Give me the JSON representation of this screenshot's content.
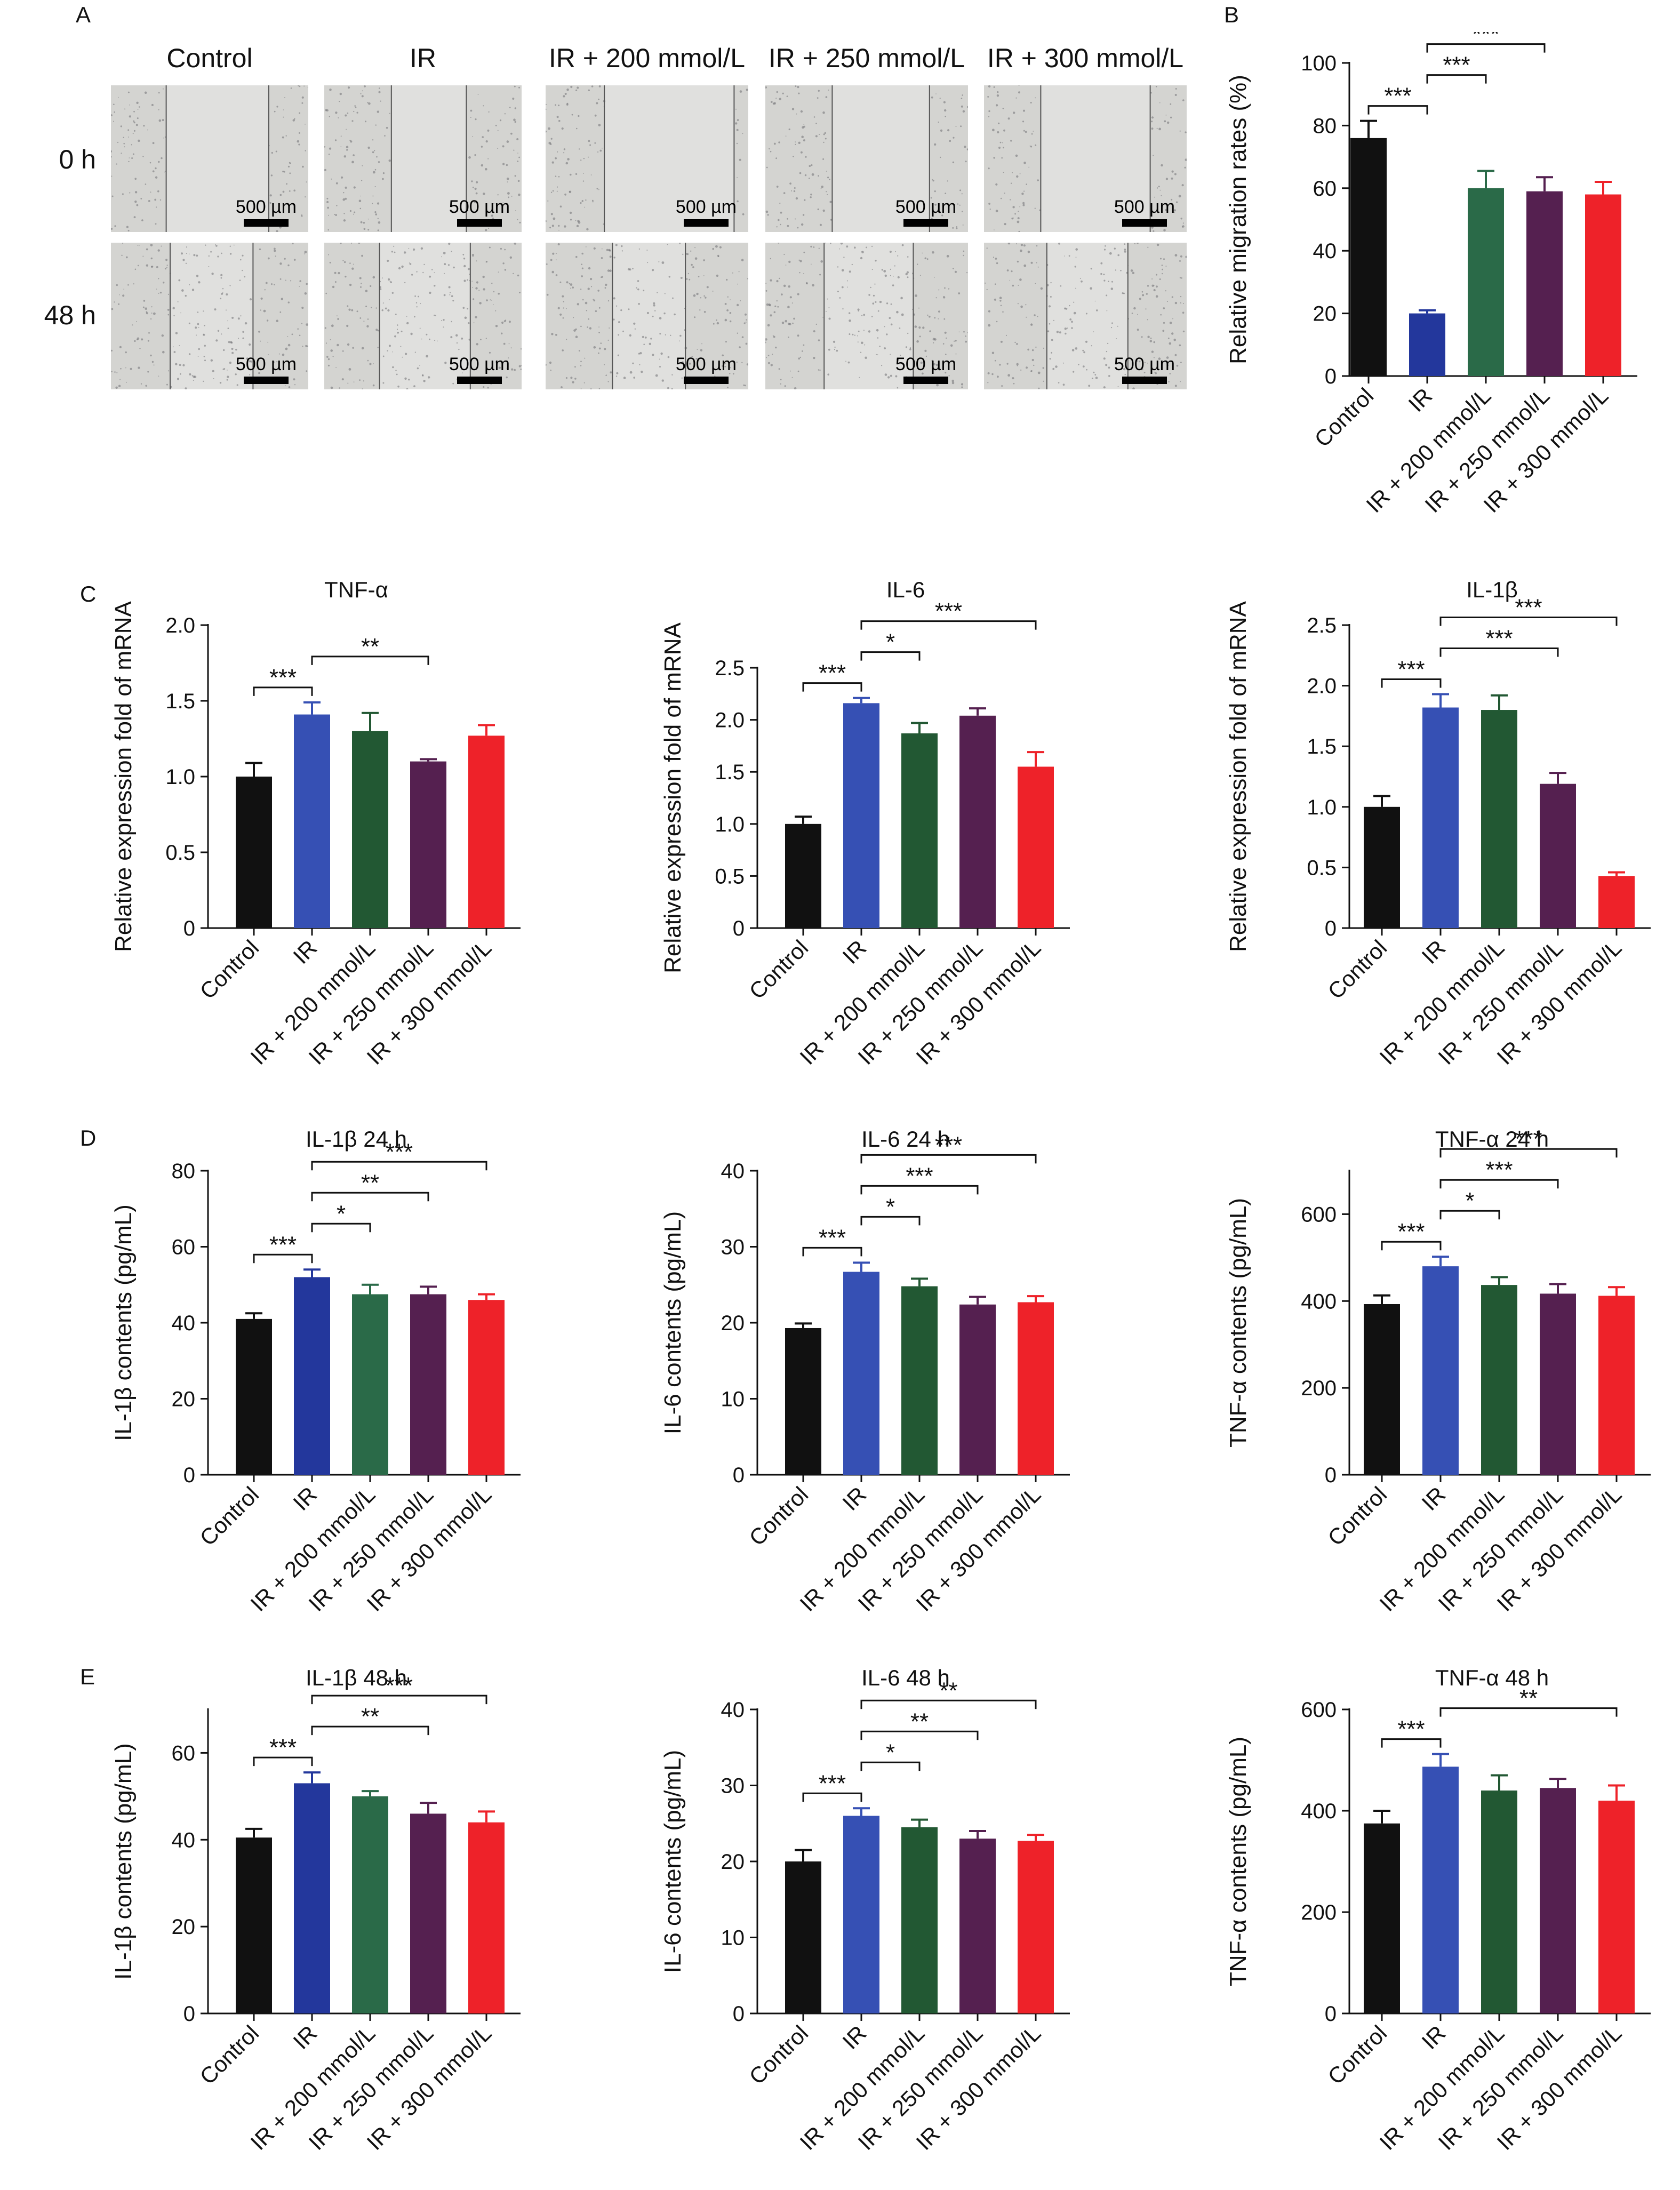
{
  "panel_letters": {
    "a": "A",
    "b": "B",
    "c": "C",
    "d": "D",
    "e": "E"
  },
  "panel_a": {
    "columns": [
      "Control",
      "IR",
      "IR + 200 mmol/L",
      "IR + 250 mmol/L",
      "IR + 300 mmol/L"
    ],
    "rows": [
      "0 h",
      "48 h"
    ],
    "scale_bar": "500 µm"
  },
  "colors": {
    "bars": [
      "#111111",
      "#3650b4",
      "#225833",
      "#552050",
      "#ee2229"
    ],
    "bars_alt": [
      "#111111",
      "#23379c",
      "#2a6a48",
      "#552050",
      "#ee2229"
    ],
    "micrograph_bg": "#cfcfcd"
  },
  "chart_data": [
    {
      "id": "B",
      "type": "bar",
      "title": "",
      "ylabel": "Relative migration rates (%)",
      "categories": [
        "Control",
        "IR",
        "IR + 200 mmol/L",
        "IR + 250 mmol/L",
        "IR + 300 mmol/L"
      ],
      "values": [
        76,
        20,
        60,
        59,
        58
      ],
      "errors": [
        5.5,
        1,
        5.5,
        4.5,
        4
      ],
      "ylim": [
        0,
        100
      ],
      "yticks": [
        "0",
        "20",
        "40",
        "60",
        "80",
        "100"
      ],
      "brackets": [
        {
          "from": 0,
          "to": 1,
          "label": "***"
        },
        {
          "from": 1,
          "to": 2,
          "label": "***"
        },
        {
          "from": 1,
          "to": 3,
          "label": "***"
        },
        {
          "from": 1,
          "to": 4,
          "label": "***"
        }
      ]
    },
    {
      "id": "C1",
      "type": "bar",
      "title": "TNF-α",
      "ylabel": "Relative expression fold of mRNA",
      "categories": [
        "Control",
        "IR",
        "IR + 200 mmol/L",
        "IR + 250 mmol/L",
        "IR + 300 mmol/L"
      ],
      "values": [
        1.0,
        1.41,
        1.3,
        1.1,
        1.27
      ],
      "errors": [
        0.09,
        0.08,
        0.12,
        0.015,
        0.07
      ],
      "ylim": [
        0,
        2.0
      ],
      "yticks": [
        "0",
        "0.5",
        "1.0",
        "1.5",
        "2.0"
      ],
      "brackets": [
        {
          "from": 0,
          "to": 1,
          "label": "***"
        },
        {
          "from": 1,
          "to": 3,
          "label": "**"
        }
      ]
    },
    {
      "id": "C2",
      "type": "bar",
      "title": "IL-6",
      "ylabel": "Relative expression fold of mRNA",
      "categories": [
        "Control",
        "IR",
        "IR + 200 mmol/L",
        "IR + 250 mmol/L",
        "IR + 300 mmol/L"
      ],
      "values": [
        1.0,
        2.16,
        1.87,
        2.04,
        1.55
      ],
      "errors": [
        0.07,
        0.05,
        0.1,
        0.07,
        0.14
      ],
      "ylim": [
        0,
        2.5
      ],
      "yticks": [
        "0",
        "0.5",
        "1.0",
        "1.5",
        "2.0",
        "2.5"
      ],
      "brackets": [
        {
          "from": 0,
          "to": 1,
          "label": "***"
        },
        {
          "from": 1,
          "to": 2,
          "label": "*"
        },
        {
          "from": 1,
          "to": 4,
          "label": "***"
        }
      ]
    },
    {
      "id": "C3",
      "type": "bar",
      "title": "IL-1β",
      "ylabel": "Relative expression fold of mRNA",
      "categories": [
        "Control",
        "IR",
        "IR + 200 mmol/L",
        "IR + 250 mmol/L",
        "IR + 300 mmol/L"
      ],
      "values": [
        1.0,
        1.82,
        1.8,
        1.19,
        0.43
      ],
      "errors": [
        0.09,
        0.11,
        0.12,
        0.09,
        0.03
      ],
      "ylim": [
        0,
        2.5
      ],
      "yticks": [
        "0",
        "0.5",
        "1.0",
        "1.5",
        "2.0",
        "2.5"
      ],
      "brackets": [
        {
          "from": 0,
          "to": 1,
          "label": "***"
        },
        {
          "from": 1,
          "to": 3,
          "label": "***"
        },
        {
          "from": 1,
          "to": 4,
          "label": "***"
        }
      ]
    },
    {
      "id": "D1",
      "type": "bar",
      "title": "IL-1β 24 h",
      "ylabel": "IL-1β contents (pg/mL)",
      "categories": [
        "Control",
        "IR",
        "IR + 200 mmol/L",
        "IR + 250 mmol/L",
        "IR + 300 mmol/L"
      ],
      "values": [
        41,
        52,
        47.5,
        47.5,
        46
      ],
      "errors": [
        1.5,
        2,
        2.5,
        2,
        1.5
      ],
      "ylim": [
        0,
        80
      ],
      "yticks": [
        "0",
        "20",
        "40",
        "60",
        "80"
      ],
      "brackets": [
        {
          "from": 0,
          "to": 1,
          "label": "***"
        },
        {
          "from": 1,
          "to": 2,
          "label": "*"
        },
        {
          "from": 1,
          "to": 3,
          "label": "**"
        },
        {
          "from": 1,
          "to": 4,
          "label": "***"
        }
      ]
    },
    {
      "id": "D2",
      "type": "bar",
      "title": "IL-6 24 h",
      "ylabel": "IL-6 contents (pg/mL)",
      "categories": [
        "Control",
        "IR",
        "IR + 200 mmol/L",
        "IR + 250 mmol/L",
        "IR + 300 mmol/L"
      ],
      "values": [
        19.3,
        26.7,
        24.8,
        22.4,
        22.7
      ],
      "errors": [
        0.6,
        1.2,
        1.0,
        1.0,
        0.8
      ],
      "ylim": [
        0,
        40
      ],
      "yticks": [
        "0",
        "10",
        "20",
        "30",
        "40"
      ],
      "brackets": [
        {
          "from": 0,
          "to": 1,
          "label": "***"
        },
        {
          "from": 1,
          "to": 2,
          "label": "*"
        },
        {
          "from": 1,
          "to": 3,
          "label": "***"
        },
        {
          "from": 1,
          "to": 4,
          "label": "***"
        }
      ]
    },
    {
      "id": "D3",
      "type": "bar",
      "title": "TNF-α 24 h",
      "ylabel": "TNF-α contents (pg/mL)",
      "categories": [
        "Control",
        "IR",
        "IR + 200 mmol/L",
        "IR + 250 mmol/L",
        "IR + 300 mmol/L"
      ],
      "values": [
        393,
        480,
        437,
        417,
        412
      ],
      "errors": [
        20,
        22,
        18,
        22,
        20
      ],
      "ylim": [
        0,
        700
      ],
      "yticks": [
        "0",
        "200",
        "400",
        "600"
      ],
      "brackets": [
        {
          "from": 0,
          "to": 1,
          "label": "***"
        },
        {
          "from": 1,
          "to": 2,
          "label": "*"
        },
        {
          "from": 1,
          "to": 3,
          "label": "***"
        },
        {
          "from": 1,
          "to": 4,
          "label": "***"
        }
      ]
    },
    {
      "id": "E1",
      "type": "bar",
      "title": "IL-1β 48 h",
      "ylabel": "IL-1β contents (pg/mL)",
      "categories": [
        "Control",
        "IR",
        "IR + 200 mmol/L",
        "IR + 250 mmol/L",
        "IR + 300 mmol/L"
      ],
      "values": [
        40.5,
        53,
        50,
        46,
        44
      ],
      "errors": [
        2,
        2.5,
        1.2,
        2.5,
        2.5
      ],
      "ylim": [
        0,
        70
      ],
      "yticks": [
        "0",
        "20",
        "40",
        "60"
      ],
      "brackets": [
        {
          "from": 0,
          "to": 1,
          "label": "***"
        },
        {
          "from": 1,
          "to": 3,
          "label": "**"
        },
        {
          "from": 1,
          "to": 4,
          "label": "***"
        }
      ]
    },
    {
      "id": "E2",
      "type": "bar",
      "title": "IL-6 48 h",
      "ylabel": "IL-6 contents (pg/mL)",
      "categories": [
        "Control",
        "IR",
        "IR + 200 mmol/L",
        "IR + 250 mmol/L",
        "IR + 300 mmol/L"
      ],
      "values": [
        20,
        26,
        24.5,
        23,
        22.7
      ],
      "errors": [
        1.5,
        1,
        1,
        1,
        0.8
      ],
      "ylim": [
        0,
        40
      ],
      "yticks": [
        "0",
        "10",
        "20",
        "30",
        "40"
      ],
      "brackets": [
        {
          "from": 0,
          "to": 1,
          "label": "***"
        },
        {
          "from": 1,
          "to": 2,
          "label": "*"
        },
        {
          "from": 1,
          "to": 3,
          "label": "**"
        },
        {
          "from": 1,
          "to": 4,
          "label": "**"
        }
      ]
    },
    {
      "id": "E3",
      "type": "bar",
      "title": "TNF-α 48 h",
      "ylabel": "TNF-α contents (pg/mL)",
      "categories": [
        "Control",
        "IR",
        "IR + 200 mmol/L",
        "IR + 250 mmol/L",
        "IR + 300 mmol/L"
      ],
      "values": [
        375,
        487,
        440,
        445,
        420
      ],
      "errors": [
        25,
        25,
        30,
        18,
        30
      ],
      "ylim": [
        0,
        600
      ],
      "yticks": [
        "0",
        "200",
        "400",
        "600"
      ],
      "brackets": [
        {
          "from": 0,
          "to": 1,
          "label": "***"
        },
        {
          "from": 1,
          "to": 4,
          "label": "**"
        }
      ]
    }
  ]
}
